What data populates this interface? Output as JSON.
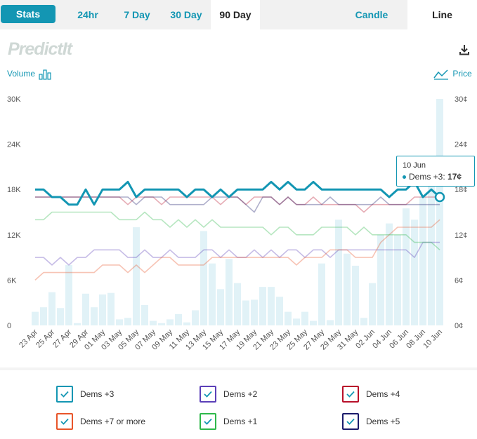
{
  "tabs": {
    "stats": "Stats",
    "h24": "24hr",
    "d7": "7 Day",
    "d30": "30 Day",
    "d90": "90 Day",
    "candle": "Candle",
    "line": "Line"
  },
  "logo_text": "PredictIt",
  "volume_label": "Volume",
  "price_label": "Price",
  "tooltip": {
    "date": "10 Jun",
    "series": "Dems +3:",
    "value": "17¢"
  },
  "colors": {
    "accent": "#1396b3",
    "dems3": "#1396b3",
    "dems2": "#5b3fb8",
    "dems4": "#b8102a",
    "dems7": "#e8552a",
    "dems1": "#2eb84a",
    "dems5": "#1b1b6b",
    "volume_bar": "#d7eef4"
  },
  "legend": [
    {
      "label": "Dems +3",
      "color": "#1396b3"
    },
    {
      "label": "Dems +2",
      "color": "#5b3fb8"
    },
    {
      "label": "Dems +4",
      "color": "#b8102a"
    },
    {
      "label": "Dems +7 or more",
      "color": "#e8552a"
    },
    {
      "label": "Dems +1",
      "color": "#2eb84a"
    },
    {
      "label": "Dems +5",
      "color": "#1b1b6b"
    }
  ],
  "chart_data": {
    "type": "line",
    "left_axis": {
      "label": "Volume",
      "ticks": [
        "0",
        "6K",
        "12K",
        "18K",
        "24K",
        "30K"
      ],
      "range": [
        0,
        30000
      ]
    },
    "right_axis": {
      "label": "Price",
      "ticks": [
        "0¢",
        "6¢",
        "12¢",
        "18¢",
        "24¢",
        "30¢"
      ],
      "range": [
        0,
        30
      ]
    },
    "x_tick_labels": [
      "23 Apr",
      "25 Apr",
      "27 Apr",
      "29 Apr",
      "01 May",
      "03 May",
      "05 May",
      "07 May",
      "09 May",
      "11 May",
      "13 May",
      "15 May",
      "17 May",
      "19 May",
      "21 May",
      "23 May",
      "25 May",
      "27 May",
      "29 May",
      "31 May",
      "02 Jun",
      "04 Jun",
      "06 Jun",
      "08 Jun",
      "10 Jun"
    ],
    "dates": [
      "23 Apr",
      "24 Apr",
      "25 Apr",
      "26 Apr",
      "27 Apr",
      "28 Apr",
      "29 Apr",
      "30 Apr",
      "01 May",
      "02 May",
      "03 May",
      "04 May",
      "05 May",
      "06 May",
      "07 May",
      "08 May",
      "09 May",
      "10 May",
      "11 May",
      "12 May",
      "13 May",
      "14 May",
      "15 May",
      "16 May",
      "17 May",
      "18 May",
      "19 May",
      "20 May",
      "21 May",
      "22 May",
      "23 May",
      "24 May",
      "25 May",
      "26 May",
      "27 May",
      "28 May",
      "29 May",
      "30 May",
      "31 May",
      "01 Jun",
      "02 Jun",
      "03 Jun",
      "04 Jun",
      "05 Jun",
      "06 Jun",
      "07 Jun",
      "08 Jun",
      "09 Jun",
      "10 Jun"
    ],
    "volume": [
      1800,
      2400,
      4400,
      2300,
      8000,
      300,
      4200,
      2400,
      4100,
      4300,
      800,
      1000,
      13000,
      2700,
      600,
      300,
      800,
      1500,
      400,
      2000,
      12500,
      8200,
      4800,
      8800,
      5600,
      3300,
      3400,
      5100,
      5100,
      3800,
      1800,
      900,
      1800,
      600,
      8200,
      700,
      14000,
      9500,
      7900,
      1000,
      5600,
      12000,
      13500,
      12000,
      15500,
      14000,
      17000,
      19000,
      30000
    ],
    "series": [
      {
        "name": "Dems +3",
        "values": [
          18,
          18,
          17,
          17,
          16,
          16,
          18,
          16,
          18,
          18,
          18,
          19,
          17,
          18,
          18,
          18,
          18,
          18,
          17,
          18,
          18,
          17,
          18,
          17,
          18,
          18,
          18,
          18,
          19,
          18,
          19,
          18,
          18,
          19,
          18,
          18,
          18,
          18,
          18,
          18,
          18,
          18,
          17,
          18,
          18,
          19,
          17,
          18,
          17
        ]
      },
      {
        "name": "Dems +2",
        "values": [
          9,
          9,
          8,
          9,
          8,
          9,
          9,
          10,
          10,
          10,
          10,
          9,
          9,
          10,
          9,
          9,
          10,
          9,
          9,
          9,
          10,
          10,
          9,
          10,
          9,
          9,
          10,
          9,
          10,
          9,
          10,
          10,
          9,
          10,
          10,
          9,
          10,
          10,
          10,
          10,
          10,
          10,
          10,
          10,
          10,
          9,
          11,
          11,
          11
        ]
      },
      {
        "name": "Dems +4",
        "values": [
          17,
          17,
          17,
          17,
          17,
          17,
          17,
          17,
          17,
          17,
          17,
          16,
          17,
          17,
          17,
          16,
          17,
          17,
          17,
          17,
          17,
          17,
          16,
          17,
          17,
          16,
          17,
          17,
          17,
          16,
          17,
          16,
          16,
          17,
          16,
          16,
          16,
          16,
          16,
          15,
          16,
          16,
          16,
          16,
          16,
          17,
          17,
          17,
          17
        ]
      },
      {
        "name": "Dems +7 or more",
        "values": [
          6,
          7,
          7,
          7,
          7,
          7,
          7,
          7,
          8,
          8,
          8,
          7,
          8,
          7,
          8,
          9,
          9,
          8,
          8,
          8,
          8,
          9,
          9,
          9,
          9,
          9,
          9,
          9,
          9,
          9,
          9,
          8,
          9,
          9,
          9,
          10,
          10,
          10,
          9,
          9,
          9,
          11,
          12,
          13,
          13,
          13,
          13,
          13,
          14
        ]
      },
      {
        "name": "Dems +1",
        "values": [
          14,
          14,
          15,
          15,
          15,
          15,
          15,
          15,
          15,
          15,
          14,
          14,
          14,
          15,
          14,
          14,
          13,
          14,
          13,
          14,
          13,
          14,
          13,
          13,
          13,
          13,
          13,
          13,
          12,
          13,
          13,
          12,
          12,
          12,
          13,
          13,
          13,
          13,
          12,
          13,
          12,
          12,
          12,
          12,
          12,
          11,
          11,
          11,
          10
        ]
      },
      {
        "name": "Dems +5",
        "values": [
          17,
          17,
          17,
          17,
          17,
          17,
          17,
          17,
          17,
          17,
          17,
          17,
          16,
          17,
          17,
          17,
          16,
          16,
          16,
          16,
          16,
          17,
          17,
          17,
          17,
          16,
          15,
          17,
          17,
          16,
          17,
          16,
          16,
          16,
          16,
          17,
          16,
          16,
          16,
          16,
          16,
          17,
          16,
          16,
          16,
          16,
          16,
          16,
          16
        ]
      }
    ],
    "highlight": {
      "series": "Dems +3",
      "date": "10 Jun",
      "value": 17
    }
  }
}
